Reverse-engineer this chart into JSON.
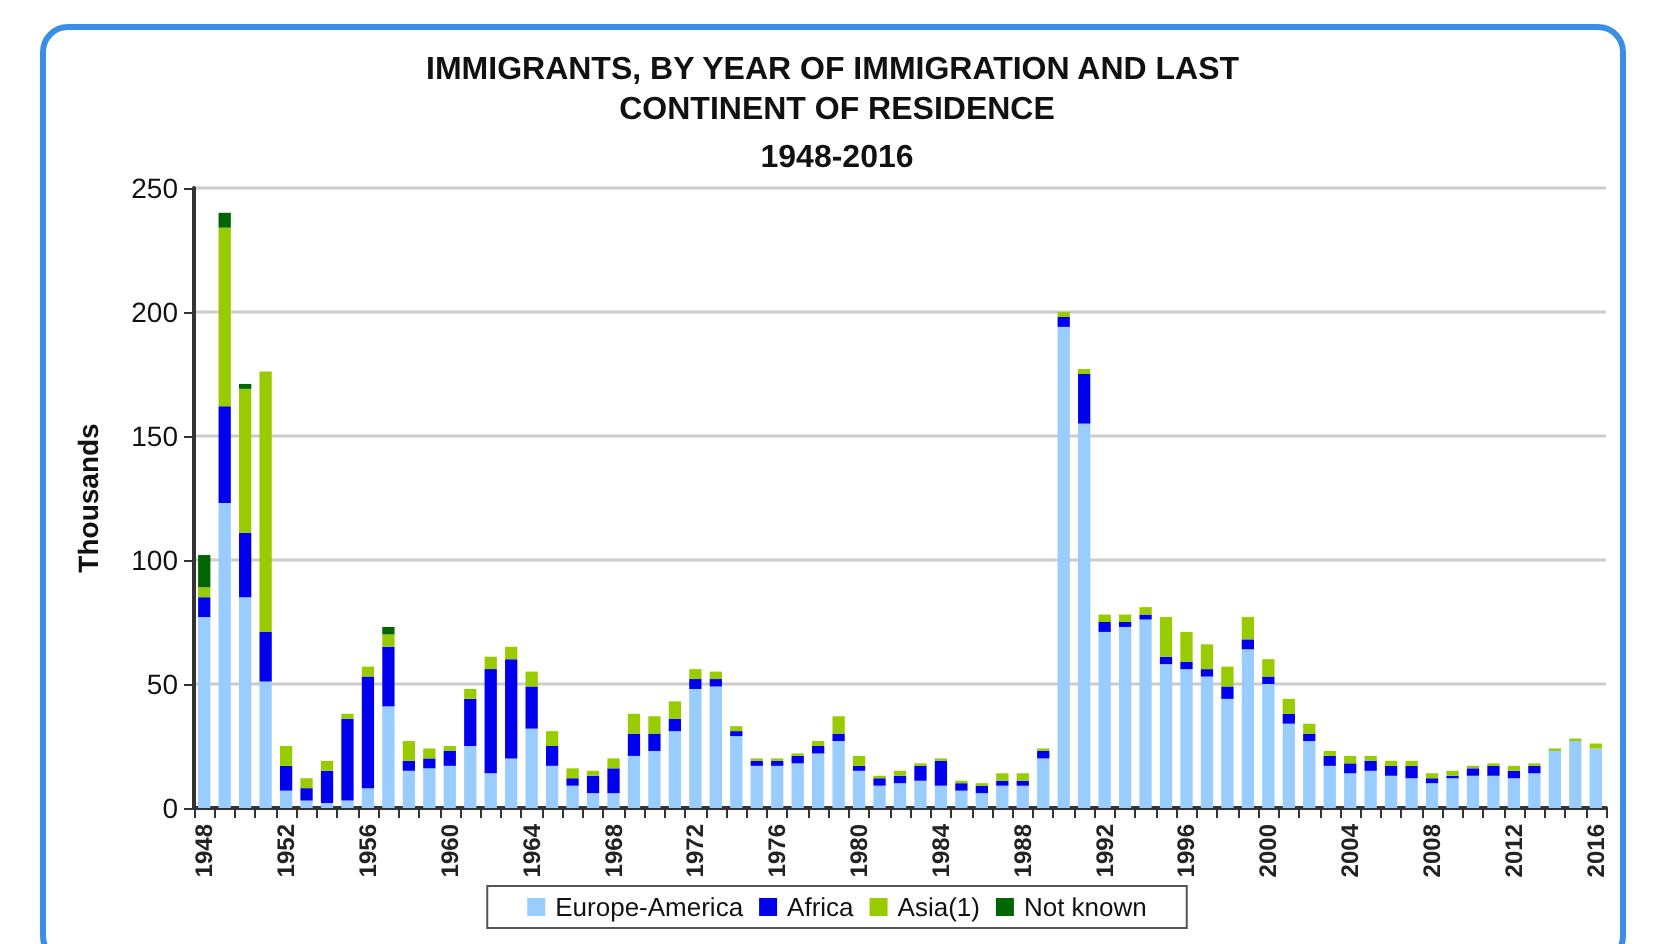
{
  "chart_data": {
    "type": "bar",
    "stacked": true,
    "title": "IMMIGRANTS, BY YEAR OF IMMIGRATION AND LAST CONTINENT OF RESIDENCE",
    "subtitle": "1948-2016",
    "ylabel": "Thousands",
    "categories": [
      "1948",
      null,
      null,
      null,
      "1952",
      null,
      null,
      null,
      "1956",
      null,
      null,
      null,
      "1960",
      null,
      null,
      null,
      "1964",
      null,
      null,
      null,
      "1968",
      null,
      null,
      null,
      "1972",
      null,
      null,
      null,
      "1976",
      null,
      null,
      null,
      "1980",
      null,
      null,
      null,
      "1984",
      null,
      null,
      null,
      "1988",
      null,
      null,
      null,
      "1992",
      null,
      null,
      null,
      "1996",
      null,
      null,
      null,
      "2000",
      null,
      null,
      null,
      "2004",
      null,
      null,
      null,
      "2008",
      null,
      null,
      null,
      "2012",
      null,
      null,
      null,
      "2016"
    ],
    "series": [
      {
        "name": "Europe-America",
        "color": "#99ccff",
        "values": [
          77,
          123,
          85,
          51,
          7,
          3,
          2,
          3,
          8,
          41,
          15,
          16,
          17,
          25,
          14,
          20,
          32,
          17,
          9,
          6,
          6,
          21,
          23,
          31,
          48,
          49,
          29,
          17,
          17,
          18,
          22,
          27,
          15,
          9,
          10,
          11,
          9,
          7,
          6,
          9,
          9,
          20,
          194,
          155,
          71,
          73,
          76,
          58,
          56,
          53,
          44,
          64,
          50,
          34,
          27,
          17,
          14,
          15,
          13,
          12,
          10,
          12,
          13,
          13,
          12,
          14,
          23,
          27,
          24
        ]
      },
      {
        "name": "Africa",
        "color": "#0000ee",
        "values": [
          8,
          39,
          26,
          20,
          10,
          5,
          13,
          33,
          45,
          24,
          4,
          4,
          6,
          19,
          42,
          40,
          17,
          8,
          3,
          7,
          10,
          9,
          7,
          5,
          4,
          3,
          2,
          2,
          2,
          3,
          3,
          3,
          2,
          3,
          3,
          6,
          10,
          3,
          3,
          2,
          2,
          3,
          4,
          20,
          4,
          2,
          2,
          3,
          3,
          3,
          5,
          4,
          3,
          4,
          3,
          4,
          4,
          4,
          4,
          5,
          2,
          1,
          3,
          4,
          3,
          3,
          0,
          0,
          0
        ]
      },
      {
        "name": "Asia(1)",
        "color": "#99cc00",
        "values": [
          4,
          72,
          58,
          105,
          8,
          4,
          4,
          2,
          4,
          5,
          8,
          4,
          2,
          4,
          5,
          5,
          6,
          6,
          4,
          2,
          4,
          8,
          7,
          7,
          4,
          3,
          2,
          1,
          1,
          1,
          2,
          7,
          4,
          1,
          2,
          1,
          1,
          1,
          1,
          3,
          3,
          1,
          2,
          2,
          3,
          3,
          3,
          16,
          12,
          10,
          8,
          9,
          7,
          6,
          4,
          2,
          3,
          2,
          2,
          2,
          2,
          2,
          1,
          1,
          2,
          1,
          1,
          1,
          2
        ]
      },
      {
        "name": "Not known",
        "color": "#006600",
        "values": [
          13,
          6,
          2,
          0,
          0,
          0,
          0,
          0,
          0,
          3,
          0,
          0,
          0,
          0,
          0,
          0,
          0,
          0,
          0,
          0,
          0,
          0,
          0,
          0,
          0,
          0,
          0,
          0,
          0,
          0,
          0,
          0,
          0,
          0,
          0,
          0,
          0,
          0,
          0,
          0,
          0,
          0,
          0,
          0,
          0,
          0,
          0,
          0,
          0,
          0,
          0,
          0,
          0,
          0,
          0,
          0,
          0,
          0,
          0,
          0,
          0,
          0,
          0,
          0,
          0,
          0,
          0,
          0,
          0
        ]
      }
    ],
    "ylim": [
      0,
      250
    ],
    "yticks": [
      0,
      50,
      100,
      150,
      200,
      250
    ],
    "grid": "y",
    "legend": "bottom"
  }
}
